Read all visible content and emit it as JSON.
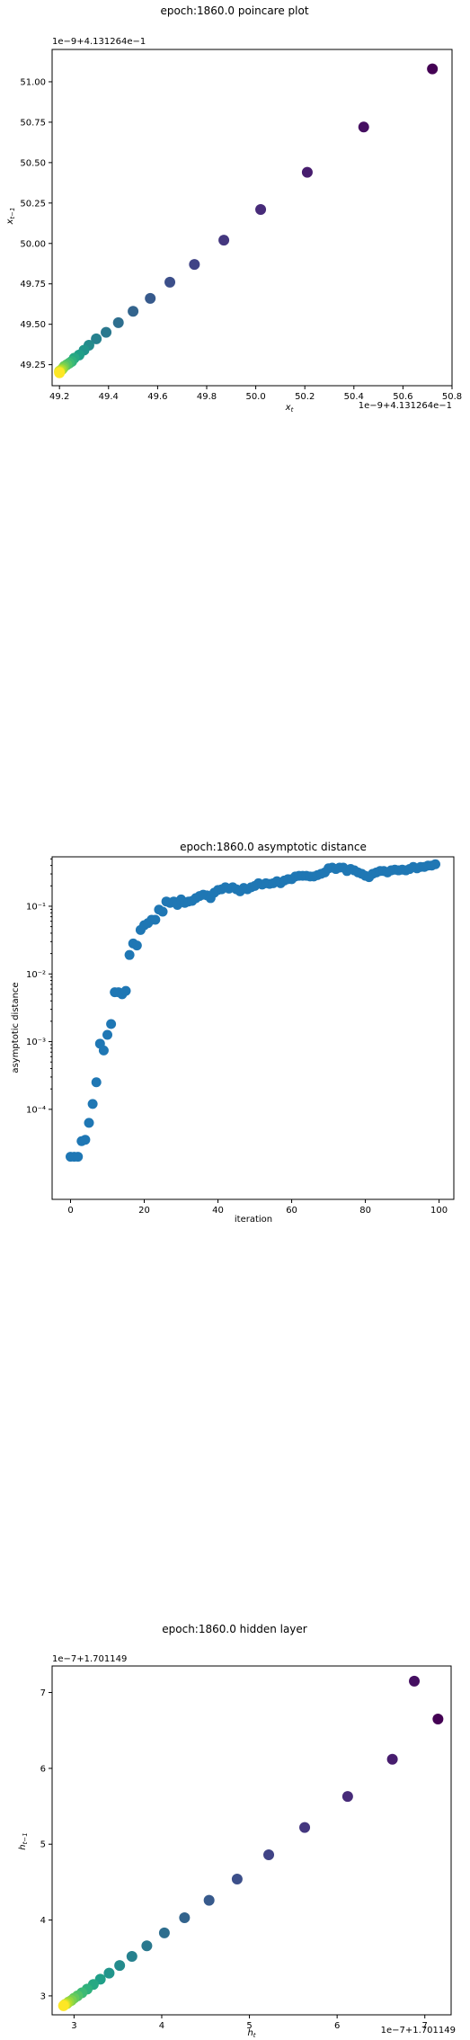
{
  "chart_data": [
    {
      "type": "scatter",
      "title": "epoch:1860.0 poincare plot",
      "xlabel": "x_t",
      "ylabel": "x_{t-1}",
      "x_offset_label": "1e−9+4.131264e−1",
      "y_offset_label": "1e−9+4.131264e−1",
      "xlim": [
        49.17,
        50.8
      ],
      "ylim": [
        49.12,
        51.2
      ],
      "xticks": [
        "49.2",
        "49.4",
        "49.6",
        "49.8",
        "50.0",
        "50.2",
        "50.4",
        "50.6",
        "50.8"
      ],
      "yticks": [
        "49.25",
        "49.50",
        "49.75",
        "50.00",
        "50.25",
        "50.50",
        "50.75",
        "51.00"
      ],
      "colormap": "viridis",
      "points": [
        {
          "x": 50.72,
          "y": 51.08
        },
        {
          "x": 50.44,
          "y": 50.72
        },
        {
          "x": 50.21,
          "y": 50.44
        },
        {
          "x": 50.02,
          "y": 50.21
        },
        {
          "x": 49.87,
          "y": 50.02
        },
        {
          "x": 49.75,
          "y": 49.87
        },
        {
          "x": 49.65,
          "y": 49.76
        },
        {
          "x": 49.57,
          "y": 49.66
        },
        {
          "x": 49.5,
          "y": 49.58
        },
        {
          "x": 49.44,
          "y": 49.51
        },
        {
          "x": 49.39,
          "y": 49.45
        },
        {
          "x": 49.35,
          "y": 49.41
        },
        {
          "x": 49.32,
          "y": 49.37
        },
        {
          "x": 49.3,
          "y": 49.34
        },
        {
          "x": 49.28,
          "y": 49.31
        },
        {
          "x": 49.26,
          "y": 49.29
        },
        {
          "x": 49.25,
          "y": 49.27
        },
        {
          "x": 49.24,
          "y": 49.26
        },
        {
          "x": 49.23,
          "y": 49.25
        },
        {
          "x": 49.22,
          "y": 49.24
        },
        {
          "x": 49.215,
          "y": 49.23
        },
        {
          "x": 49.21,
          "y": 49.22
        },
        {
          "x": 49.205,
          "y": 49.215
        },
        {
          "x": 49.2,
          "y": 49.21
        },
        {
          "x": 49.2,
          "y": 49.205
        },
        {
          "x": 49.2,
          "y": 49.2
        }
      ]
    },
    {
      "type": "scatter",
      "title": "epoch:1860.0 asymptotic distance",
      "xlabel": "iteration",
      "ylabel": "asymptotic distance",
      "y_scale": "log",
      "xlim": [
        -5,
        104
      ],
      "ylim_log10": [
        -5.33,
        -0.27
      ],
      "xticks": [
        0,
        20,
        40,
        60,
        80,
        100
      ],
      "yticks": [
        {
          "exp": -1,
          "label": "10⁻¹"
        },
        {
          "exp": -2,
          "label": "10⁻²"
        },
        {
          "exp": -3,
          "label": "10⁻³"
        },
        {
          "exp": -4,
          "label": "10⁻⁴"
        }
      ],
      "color": "#1f77b4",
      "x": [
        0,
        1,
        2,
        3,
        4,
        5,
        6,
        7,
        8,
        9,
        10,
        11,
        12,
        13,
        14,
        15,
        16,
        17,
        18,
        19,
        20,
        21,
        22,
        23,
        24,
        25,
        26,
        27,
        28,
        29,
        30,
        31,
        32,
        33,
        34,
        35,
        36,
        37,
        38,
        39,
        40,
        41,
        42,
        43,
        44,
        45,
        46,
        47,
        48,
        49,
        50,
        51,
        52,
        53,
        54,
        55,
        56,
        57,
        58,
        59,
        60,
        61,
        62,
        63,
        64,
        65,
        66,
        67,
        68,
        69,
        70,
        71,
        72,
        73,
        74,
        75,
        76,
        77,
        78,
        79,
        80,
        81,
        82,
        83,
        84,
        85,
        86,
        87,
        88,
        89,
        90,
        91,
        92,
        93,
        94,
        95,
        96,
        97,
        98,
        99
      ],
      "log10_y": [
        -4.7,
        -4.7,
        -4.7,
        -4.47,
        -4.45,
        -4.2,
        -3.92,
        -3.6,
        -3.03,
        -3.13,
        -2.9,
        -2.74,
        -2.27,
        -2.27,
        -2.3,
        -2.25,
        -1.72,
        -1.55,
        -1.58,
        -1.35,
        -1.28,
        -1.25,
        -1.2,
        -1.2,
        -1.05,
        -1.08,
        -0.93,
        -0.95,
        -0.93,
        -0.98,
        -0.9,
        -0.95,
        -0.93,
        -0.92,
        -0.88,
        -0.85,
        -0.83,
        -0.84,
        -0.88,
        -0.8,
        -0.76,
        -0.75,
        -0.72,
        -0.74,
        -0.72,
        -0.75,
        -0.78,
        -0.73,
        -0.75,
        -0.72,
        -0.7,
        -0.66,
        -0.68,
        -0.66,
        -0.67,
        -0.66,
        -0.63,
        -0.66,
        -0.62,
        -0.6,
        -0.6,
        -0.56,
        -0.55,
        -0.55,
        -0.55,
        -0.56,
        -0.56,
        -0.54,
        -0.52,
        -0.5,
        -0.44,
        -0.43,
        -0.45,
        -0.43,
        -0.43,
        -0.48,
        -0.45,
        -0.47,
        -0.5,
        -0.52,
        -0.55,
        -0.57,
        -0.52,
        -0.5,
        -0.48,
        -0.48,
        -0.5,
        -0.47,
        -0.46,
        -0.47,
        -0.46,
        -0.47,
        -0.45,
        -0.42,
        -0.44,
        -0.42,
        -0.42,
        -0.4,
        -0.4,
        -0.38
      ]
    },
    {
      "type": "scatter",
      "title": "epoch:1860.0 hidden layer",
      "xlabel": "h_t",
      "ylabel": "h_{t-1}",
      "x_offset_label": "1e−7+1.701149",
      "y_offset_label": "1e−7+1.701149",
      "xlim": [
        2.75,
        7.3
      ],
      "ylim": [
        2.75,
        7.35
      ],
      "xticks": [
        "3",
        "4",
        "5",
        "6",
        "7"
      ],
      "yticks": [
        "3",
        "4",
        "5",
        "6",
        "7"
      ],
      "colormap": "viridis",
      "points": [
        {
          "x": 7.15,
          "y": 6.65
        },
        {
          "x": 6.88,
          "y": 7.15
        },
        {
          "x": 6.63,
          "y": 6.12
        },
        {
          "x": 6.12,
          "y": 5.63
        },
        {
          "x": 5.63,
          "y": 5.22
        },
        {
          "x": 5.22,
          "y": 4.86
        },
        {
          "x": 4.86,
          "y": 4.54
        },
        {
          "x": 4.54,
          "y": 4.26
        },
        {
          "x": 4.26,
          "y": 4.03
        },
        {
          "x": 4.03,
          "y": 3.83
        },
        {
          "x": 3.83,
          "y": 3.66
        },
        {
          "x": 3.66,
          "y": 3.52
        },
        {
          "x": 3.52,
          "y": 3.4
        },
        {
          "x": 3.4,
          "y": 3.3
        },
        {
          "x": 3.3,
          "y": 3.22
        },
        {
          "x": 3.22,
          "y": 3.15
        },
        {
          "x": 3.15,
          "y": 3.09
        },
        {
          "x": 3.09,
          "y": 3.04
        },
        {
          "x": 3.04,
          "y": 3.0
        },
        {
          "x": 3.0,
          "y": 2.97
        },
        {
          "x": 2.97,
          "y": 2.94
        },
        {
          "x": 2.94,
          "y": 2.92
        },
        {
          "x": 2.92,
          "y": 2.9
        },
        {
          "x": 2.9,
          "y": 2.89
        },
        {
          "x": 2.89,
          "y": 2.88
        },
        {
          "x": 2.88,
          "y": 2.87
        }
      ]
    }
  ]
}
